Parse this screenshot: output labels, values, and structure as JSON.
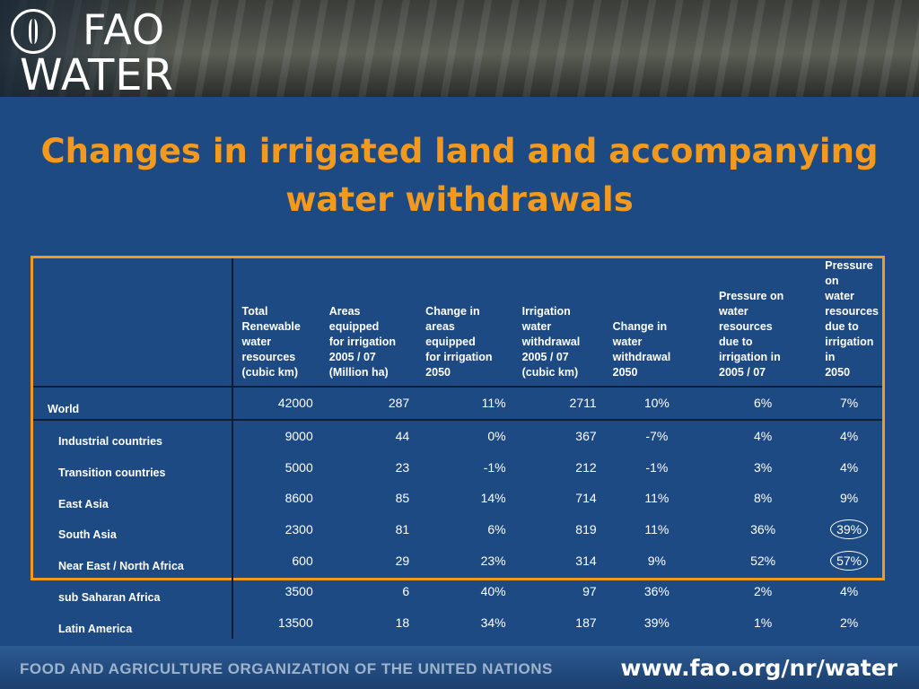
{
  "header": {
    "logo_top": "FAO",
    "logo_bottom": "WATER"
  },
  "title": {
    "line1": "Changes in irrigated land and accompanying",
    "line2": "water withdrawals"
  },
  "table": {
    "columns": [
      "",
      "Total\nRenewable\nwater\nresources\n(cubic km)",
      "Areas\nequipped\nfor irrigation\n2005 / 07\n(Million ha)",
      "Change in\nareas\nequipped\nfor irrigation\n2050",
      "Irrigation\nwater\nwithdrawal\n2005 / 07\n(cubic km)",
      "Change in\nwater\nwithdrawal\n2050",
      "Pressure on\nwater\nresources\ndue to\nirrigation in\n2005 / 07",
      "Pressure on\nwater\nresources\ndue to\nirrigation in\n2050"
    ],
    "rows": [
      {
        "label": "World",
        "values": [
          "42000",
          "287",
          "11%",
          "2711",
          "10%",
          "6%",
          "7%"
        ]
      },
      {
        "label": "Industrial countries",
        "values": [
          "9000",
          "44",
          "0%",
          "367",
          "-7%",
          "4%",
          "4%"
        ]
      },
      {
        "label": "Transition countries",
        "values": [
          "5000",
          "23",
          "-1%",
          "212",
          "-1%",
          "3%",
          "4%"
        ]
      },
      {
        "label": "East Asia",
        "values": [
          "8600",
          "85",
          "14%",
          "714",
          "11%",
          "8%",
          "9%"
        ]
      },
      {
        "label": "South Asia",
        "values": [
          "2300",
          "81",
          "6%",
          "819",
          "11%",
          "36%",
          "39%"
        ]
      },
      {
        "label": "Near East / North Africa",
        "values": [
          "600",
          "29",
          "23%",
          "314",
          "9%",
          "52%",
          "57%"
        ]
      },
      {
        "label": "sub Saharan Africa",
        "values": [
          "3500",
          "6",
          "40%",
          "97",
          "36%",
          "2%",
          "4%"
        ]
      },
      {
        "label": "Latin America",
        "values": [
          "13500",
          "18",
          "34%",
          "187",
          "39%",
          "1%",
          "2%"
        ]
      }
    ]
  },
  "footer": {
    "org": "FOOD AND AGRICULTURE ORGANIZATION OF THE UNITED NATIONS",
    "url": "www.fao.org/nr/water"
  },
  "colors": {
    "background": "#1d4a82",
    "accent": "#f39a1e",
    "text": "#ffffff"
  }
}
